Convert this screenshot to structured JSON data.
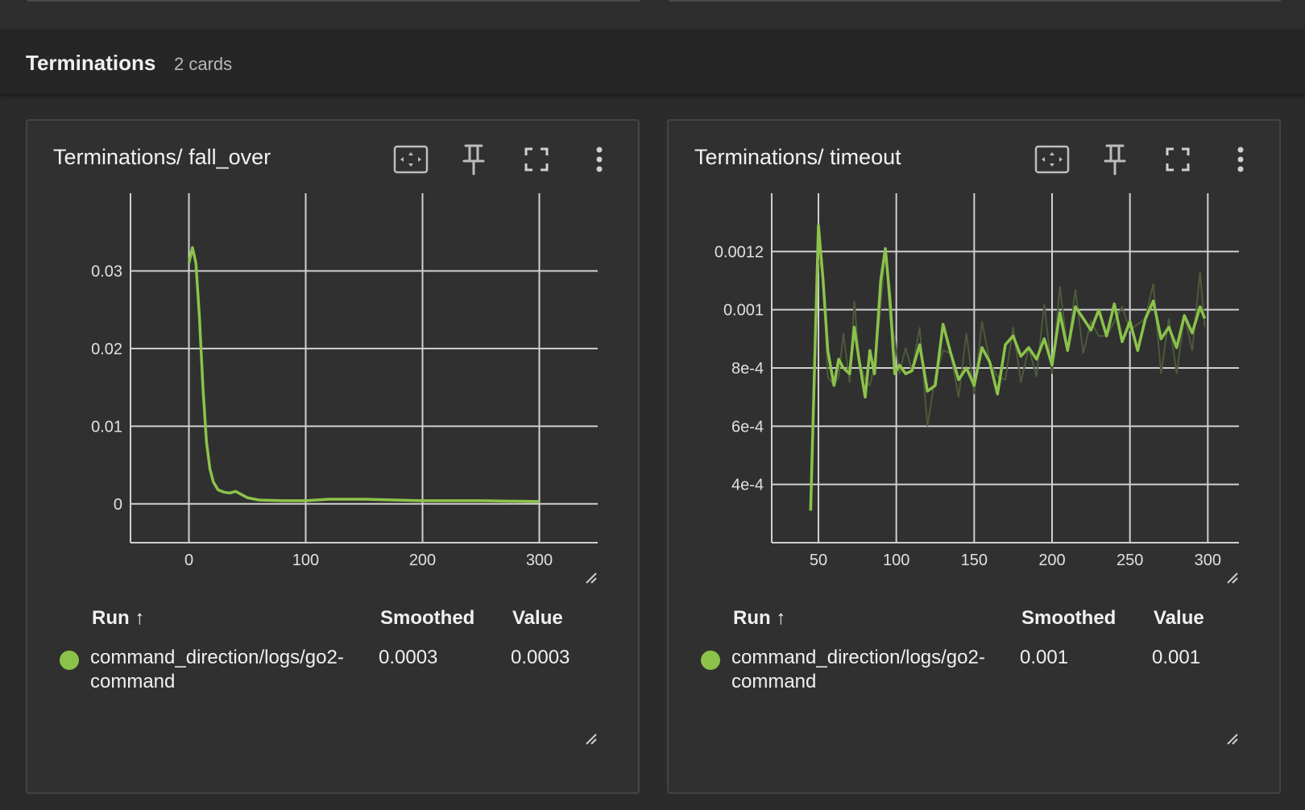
{
  "section": {
    "title": "Terminations",
    "count": "2 cards"
  },
  "colors": {
    "series": "#8bc34a",
    "raw": "#4c5a3a",
    "grid": "#d0d0d0",
    "axis": "#cfcfcf"
  },
  "cards": [
    {
      "title": "Terminations/ fall_over",
      "legend": {
        "headers": {
          "run": "Run ↑",
          "smoothed": "Smoothed",
          "value": "Value"
        },
        "row": {
          "run_line1": "command_direction/logs/go2-",
          "run_line2": "command",
          "smoothed": "0.0003",
          "value": "0.0003"
        }
      },
      "chart_data": {
        "type": "line",
        "xlim": [
          -50,
          350
        ],
        "ylim": [
          -0.005,
          0.04
        ],
        "xticks": [
          0,
          100,
          200,
          300
        ],
        "xtick_labels": [
          "0",
          "100",
          "200",
          "300"
        ],
        "yticks": [
          0,
          0.01,
          0.02,
          0.03
        ],
        "ytick_labels": [
          "0",
          "0.01",
          "0.02",
          "0.03"
        ],
        "grid": true,
        "series": [
          {
            "x": [
              0,
              3,
              6,
              9,
              12,
              15,
              18,
              21,
              25,
              30,
              35,
              40,
              45,
              50,
              60,
              80,
              100,
              120,
              150,
              200,
              250,
              300
            ],
            "y": [
              0.031,
              0.033,
              0.031,
              0.024,
              0.015,
              0.008,
              0.0045,
              0.0028,
              0.0018,
              0.0015,
              0.0014,
              0.0016,
              0.0012,
              0.0008,
              0.0005,
              0.0004,
              0.0004,
              0.0006,
              0.0006,
              0.0004,
              0.0004,
              0.0003
            ]
          }
        ]
      }
    },
    {
      "title": "Terminations/ timeout",
      "legend": {
        "headers": {
          "run": "Run ↑",
          "smoothed": "Smoothed",
          "value": "Value"
        },
        "row": {
          "run_line1": "command_direction/logs/go2-",
          "run_line2": "command",
          "smoothed": "0.001",
          "value": "0.001"
        }
      },
      "chart_data": {
        "type": "line",
        "xlim": [
          20,
          320
        ],
        "ylim": [
          0.0002,
          0.0014
        ],
        "xticks": [
          50,
          100,
          150,
          200,
          250,
          300
        ],
        "xtick_labels": [
          "50",
          "100",
          "150",
          "200",
          "250",
          "300"
        ],
        "yticks": [
          0.0004,
          0.0006,
          0.0008,
          0.001,
          0.0012
        ],
        "ytick_labels": [
          "4e-4",
          "6e-4",
          "8e-4",
          "0.001",
          "0.0012"
        ],
        "grid": true,
        "series": [
          {
            "x": [
              45,
              48,
              50,
              53,
              56,
              60,
              63,
              66,
              70,
              73,
              76,
              80,
              83,
              86,
              90,
              93,
              96,
              99,
              102,
              106,
              110,
              115,
              120,
              125,
              130,
              135,
              140,
              145,
              150,
              155,
              160,
              165,
              170,
              175,
              180,
              185,
              190,
              195,
              200,
              205,
              210,
              215,
              220,
              225,
              230,
              235,
              240,
              245,
              250,
              255,
              260,
              265,
              270,
              275,
              280,
              285,
              290,
              295,
              298
            ],
            "y": [
              0.00031,
              0.0009,
              0.00129,
              0.0011,
              0.00086,
              0.00074,
              0.00083,
              0.0008,
              0.00078,
              0.00094,
              0.00083,
              0.0007,
              0.00086,
              0.00078,
              0.0011,
              0.00121,
              0.00103,
              0.00078,
              0.00081,
              0.00078,
              0.00079,
              0.00088,
              0.00072,
              0.00074,
              0.00095,
              0.00085,
              0.00076,
              0.0008,
              0.00074,
              0.00087,
              0.00082,
              0.00071,
              0.00088,
              0.00091,
              0.00084,
              0.00087,
              0.00083,
              0.0009,
              0.00081,
              0.00099,
              0.00086,
              0.00101,
              0.00097,
              0.00093,
              0.001,
              0.00091,
              0.00102,
              0.00089,
              0.00096,
              0.00086,
              0.00097,
              0.00103,
              0.0009,
              0.00094,
              0.00087,
              0.00098,
              0.00092,
              0.00101,
              0.00097
            ]
          }
        ]
      }
    }
  ]
}
